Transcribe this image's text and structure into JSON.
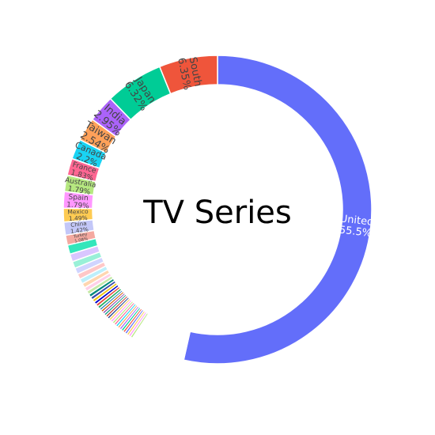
{
  "chart_data": {
    "type": "pie",
    "hole": true,
    "center_text": "TV Series",
    "direction": "clockwise",
    "slices": [
      {
        "name": "United",
        "value": 55.5,
        "percent_label": "55.5%",
        "color": "#636EFA",
        "text_color": "#ffffff"
      },
      {
        "name": "",
        "value": 6.0,
        "percent_label": "",
        "color": "#ffffff",
        "text_color": "#ffffff"
      },
      {
        "name": "",
        "value": 0.25,
        "percent_label": "",
        "color": "#B6E880",
        "text_color": "#444444"
      },
      {
        "name": "",
        "value": 0.25,
        "percent_label": "",
        "color": "#FF97FF",
        "text_color": "#444444"
      },
      {
        "name": "",
        "value": 0.25,
        "percent_label": "",
        "color": "#FECB52",
        "text_color": "#444444"
      },
      {
        "name": "",
        "value": 0.25,
        "percent_label": "",
        "color": "#636EFA",
        "text_color": "#444444"
      },
      {
        "name": "",
        "value": 0.25,
        "percent_label": "",
        "color": "#EF553B",
        "text_color": "#444444"
      },
      {
        "name": "",
        "value": 0.25,
        "percent_label": "",
        "color": "#00CC96",
        "text_color": "#444444"
      },
      {
        "name": "",
        "value": 0.25,
        "percent_label": "",
        "color": "#AB63FA",
        "text_color": "#444444"
      },
      {
        "name": "",
        "value": 0.25,
        "percent_label": "",
        "color": "#FFA15A",
        "text_color": "#444444"
      },
      {
        "name": "",
        "value": 0.25,
        "percent_label": "",
        "color": "#19D3F3",
        "text_color": "#444444"
      },
      {
        "name": "",
        "value": 0.25,
        "percent_label": "",
        "color": "#FF6692",
        "text_color": "#444444"
      },
      {
        "name": "",
        "value": 0.25,
        "percent_label": "",
        "color": "#B6E880",
        "text_color": "#444444"
      },
      {
        "name": "",
        "value": 0.25,
        "percent_label": "",
        "color": "#FF97FF",
        "text_color": "#444444"
      },
      {
        "name": "",
        "value": 0.25,
        "percent_label": "",
        "color": "#FECB52",
        "text_color": "#444444"
      },
      {
        "name": "",
        "value": 0.25,
        "percent_label": "",
        "color": "#1F3A93",
        "text_color": "#444444"
      },
      {
        "name": "",
        "value": 0.25,
        "percent_label": "",
        "color": "#C0392B",
        "text_color": "#444444"
      },
      {
        "name": "",
        "value": 0.25,
        "percent_label": "",
        "color": "#16A085",
        "text_color": "#444444"
      },
      {
        "name": "",
        "value": 0.25,
        "percent_label": "",
        "color": "#8E44AD",
        "text_color": "#444444"
      },
      {
        "name": "",
        "value": 0.25,
        "percent_label": "",
        "color": "#D35400",
        "text_color": "#444444"
      },
      {
        "name": "",
        "value": 0.25,
        "percent_label": "",
        "color": "#2980B9",
        "text_color": "#444444"
      },
      {
        "name": "",
        "value": 0.3,
        "percent_label": "",
        "color": "#27AE60",
        "text_color": "#444444"
      },
      {
        "name": "",
        "value": 0.3,
        "percent_label": "",
        "color": "#E74C3C",
        "text_color": "#444444"
      },
      {
        "name": "",
        "value": 0.3,
        "percent_label": "",
        "color": "#0000CC",
        "text_color": "#444444"
      },
      {
        "name": "",
        "value": 0.32,
        "percent_label": "",
        "color": "#F1C40F",
        "text_color": "#444444"
      },
      {
        "name": "",
        "value": 0.33,
        "percent_label": "",
        "color": "#3949AB",
        "text_color": "#444444"
      },
      {
        "name": "",
        "value": 0.35,
        "percent_label": "",
        "color": "#00897B",
        "text_color": "#444444"
      },
      {
        "name": "",
        "value": 0.4,
        "percent_label": "",
        "color": "#C6E9A8",
        "text_color": "#444444"
      },
      {
        "name": "",
        "value": 0.45,
        "percent_label": "",
        "color": "#FFD0E8",
        "text_color": "#444444"
      },
      {
        "name": "",
        "value": 0.5,
        "percent_label": "",
        "color": "#FFD6B0",
        "text_color": "#444444"
      },
      {
        "name": "",
        "value": 0.55,
        "percent_label": "",
        "color": "#BDEFFB",
        "text_color": "#444444"
      },
      {
        "name": "",
        "value": 0.6,
        "percent_label": "",
        "color": "#FFC7C7",
        "text_color": "#444444"
      },
      {
        "name": "",
        "value": 0.68,
        "percent_label": "",
        "color": "#D0D4FF",
        "text_color": "#444444"
      },
      {
        "name": "",
        "value": 0.75,
        "percent_label": "",
        "color": "#99F0D8",
        "text_color": "#444444"
      },
      {
        "name": "",
        "value": 0.85,
        "percent_label": "",
        "color": "#D9C6FF",
        "text_color": "#444444"
      },
      {
        "name": "",
        "value": 1.0,
        "percent_label": "",
        "color": "#33E6BB",
        "text_color": "#444444"
      },
      {
        "name": "Turkey",
        "value": 1.08,
        "percent_label": "1.08%",
        "color": "#F4A9A0",
        "text_color": "#444444"
      },
      {
        "name": "China",
        "value": 1.42,
        "percent_label": "1.42%",
        "color": "#C3C7F8",
        "text_color": "#444444"
      },
      {
        "name": "Mexico",
        "value": 1.49,
        "percent_label": "1.49%",
        "color": "#FECB52",
        "text_color": "#444444"
      },
      {
        "name": "Spain",
        "value": 1.79,
        "percent_label": "1.79%",
        "color": "#FF97FF",
        "text_color": "#444444"
      },
      {
        "name": "Australia",
        "value": 1.79,
        "percent_label": "1.79%",
        "color": "#B6E880",
        "text_color": "#444444"
      },
      {
        "name": "France",
        "value": 1.83,
        "percent_label": "1.83%",
        "color": "#FF6692",
        "text_color": "#444444"
      },
      {
        "name": "Canada",
        "value": 2.2,
        "percent_label": "2.2%",
        "color": "#19D3F3",
        "text_color": "#444444"
      },
      {
        "name": "Taiwan",
        "value": 2.54,
        "percent_label": "2.54%",
        "color": "#FFA15A",
        "text_color": "#444444"
      },
      {
        "name": "India",
        "value": 2.95,
        "percent_label": "2.95%",
        "color": "#AB63FA",
        "text_color": "#444444"
      },
      {
        "name": "Japan",
        "value": 6.32,
        "percent_label": "6.32%",
        "color": "#00CC96",
        "text_color": "#444444"
      },
      {
        "name": "South",
        "value": 6.35,
        "percent_label": "6.35%",
        "color": "#EF553B",
        "text_color": "#444444"
      }
    ]
  }
}
